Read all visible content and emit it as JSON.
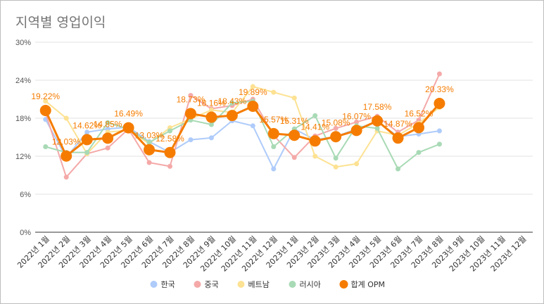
{
  "chart_data": {
    "type": "line",
    "title": "지역별 영업이익",
    "categories": [
      "2022년 1월",
      "2022년 2월",
      "2022년 3월",
      "2022년 4월",
      "2022년 5월",
      "2022년 6월",
      "2022년 7월",
      "2022년 8월",
      "2022년 9월",
      "2022년 10월",
      "2022년 11월",
      "2022년 12월",
      "2023년 1월",
      "2023년 2월",
      "2023년 3월",
      "2023년 4월",
      "2023년 5월",
      "2023년 6월",
      "2023년 7월",
      "2023년 8월",
      "2023년 9월",
      "2023년 10월",
      "2023년 11월",
      "2023년 12월"
    ],
    "ylim": [
      0,
      30
    ],
    "yticks": [
      0,
      6,
      12,
      18,
      24,
      30
    ],
    "ytick_labels": [
      "0%",
      "6%",
      "12%",
      "18%",
      "24%",
      "30%"
    ],
    "grid": true,
    "legend_position": "bottom",
    "series": [
      {
        "name": "한국",
        "color": "#aecbfa",
        "values": [
          17.8,
          11.8,
          15.8,
          16.3,
          16.6,
          14.3,
          12.6,
          14.6,
          14.9,
          17.6,
          16.8,
          10.0,
          16.3,
          14.6,
          15.1,
          16.3,
          17.5,
          15.1,
          15.5,
          16.0,
          null,
          null,
          null,
          null
        ]
      },
      {
        "name": "중국",
        "color": "#f4a9a8",
        "values": [
          18.8,
          8.7,
          12.4,
          13.3,
          16.3,
          11.0,
          10.4,
          21.6,
          19.5,
          20.0,
          21.0,
          15.3,
          11.8,
          15.2,
          16.4,
          17.4,
          18.3,
          15.8,
          17.7,
          25.0,
          null,
          null,
          null,
          null
        ]
      },
      {
        "name": "베트남",
        "color": "#fde293",
        "values": [
          20.7,
          18.0,
          12.4,
          15.8,
          16.1,
          14.0,
          16.5,
          17.9,
          19.3,
          18.9,
          23.0,
          22.1,
          21.2,
          12.0,
          10.3,
          10.8,
          16.0,
          15.3,
          17.2,
          19.7,
          null,
          null,
          null,
          null
        ]
      },
      {
        "name": "러시아",
        "color": "#a8dab5",
        "values": [
          13.5,
          12.6,
          12.6,
          17.3,
          16.3,
          14.2,
          16.0,
          17.7,
          17.0,
          20.4,
          20.7,
          13.5,
          16.3,
          18.4,
          11.7,
          16.8,
          16.4,
          10.0,
          12.6,
          13.9,
          null,
          null,
          null,
          null
        ]
      },
      {
        "name": "합계 OPM",
        "color": "#f57c00",
        "values": [
          19.22,
          12.03,
          14.62,
          14.85,
          16.49,
          13.03,
          12.58,
          18.73,
          18.16,
          18.43,
          19.89,
          15.57,
          15.31,
          14.41,
          15.08,
          16.07,
          17.58,
          14.87,
          16.52,
          20.33,
          null,
          null,
          null,
          null
        ],
        "data_labels": [
          "19.22%",
          "12.03%",
          "14.62%",
          "14.85%",
          "16.49%",
          "13.03%",
          "12.58%",
          "18.73%",
          "18.16%",
          "18.43%",
          "19.89%",
          "15.57%",
          "15.31%",
          "14.41%",
          "15.08%",
          "16.07%",
          "17.58%",
          "14.87%",
          "16.52%",
          "20.33%"
        ]
      }
    ]
  }
}
